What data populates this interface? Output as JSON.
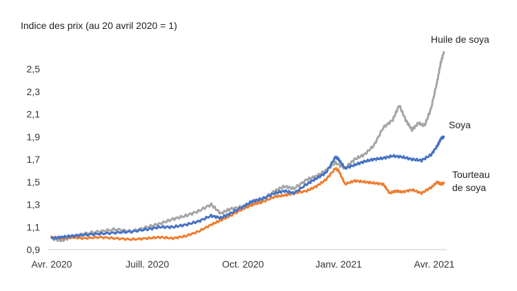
{
  "chart_data": {
    "type": "line",
    "title": "",
    "ylabel": "Indice des prix (au 20 avril 2020 = 1)",
    "xlabel": "",
    "ylim": [
      0.9,
      2.6
    ],
    "yticks": [
      "0,9",
      "1,1",
      "1,3",
      "1,5",
      "1,7",
      "1,9",
      "2,1",
      "2,3",
      "2,5"
    ],
    "ytick_values": [
      0.9,
      1.1,
      1.3,
      1.5,
      1.7,
      1.9,
      2.1,
      2.3,
      2.5
    ],
    "xlim": [
      0,
      12.3
    ],
    "xticks": [
      "Avr. 2020",
      "Juill. 2020",
      "Oct. 2020",
      "Janv. 2021",
      "Avr. 2021"
    ],
    "xtick_values": [
      0,
      3,
      6,
      9,
      12
    ],
    "x_unit": "months since 20 April 2020",
    "series": [
      {
        "name": "Huile de soya",
        "label_lines": [
          "Huile de soya"
        ],
        "color": "#a5a5a5",
        "x": [
          0,
          0.3,
          0.6,
          1.0,
          1.5,
          2.0,
          2.5,
          3.0,
          3.4,
          3.8,
          4.2,
          4.6,
          5.0,
          5.3,
          5.6,
          6.0,
          6.3,
          6.6,
          7.0,
          7.3,
          7.6,
          8.0,
          8.3,
          8.6,
          8.9,
          9.2,
          9.5,
          9.8,
          10.1,
          10.4,
          10.7,
          10.9,
          11.1,
          11.3,
          11.5,
          11.7,
          11.9,
          12.1,
          12.2,
          12.3
        ],
        "values": [
          1.0,
          0.98,
          1.01,
          1.04,
          1.06,
          1.08,
          1.06,
          1.1,
          1.13,
          1.17,
          1.2,
          1.24,
          1.3,
          1.22,
          1.26,
          1.28,
          1.3,
          1.34,
          1.42,
          1.46,
          1.44,
          1.52,
          1.55,
          1.6,
          1.67,
          1.62,
          1.7,
          1.74,
          1.82,
          1.98,
          2.05,
          2.18,
          2.05,
          1.96,
          2.02,
          2.0,
          2.15,
          2.4,
          2.55,
          2.65
        ]
      },
      {
        "name": "Soya",
        "label_lines": [
          "Soya"
        ],
        "color": "#4472c4",
        "x": [
          0,
          0.3,
          0.6,
          1.0,
          1.5,
          2.0,
          2.5,
          3.0,
          3.4,
          3.8,
          4.2,
          4.6,
          5.0,
          5.3,
          5.6,
          6.0,
          6.3,
          6.6,
          7.0,
          7.3,
          7.6,
          8.0,
          8.3,
          8.6,
          8.9,
          9.0,
          9.2,
          9.5,
          9.8,
          10.1,
          10.4,
          10.7,
          11.0,
          11.3,
          11.6,
          11.9,
          12.1,
          12.2,
          12.3
        ],
        "values": [
          1.0,
          1.01,
          1.02,
          1.03,
          1.04,
          1.05,
          1.06,
          1.08,
          1.1,
          1.1,
          1.12,
          1.15,
          1.2,
          1.18,
          1.22,
          1.28,
          1.33,
          1.35,
          1.4,
          1.42,
          1.4,
          1.48,
          1.53,
          1.58,
          1.72,
          1.7,
          1.62,
          1.65,
          1.68,
          1.7,
          1.71,
          1.73,
          1.72,
          1.7,
          1.69,
          1.74,
          1.82,
          1.88,
          1.9
        ]
      },
      {
        "name": "Tourteau de soya",
        "label_lines": [
          "Tourteau",
          "de soya"
        ],
        "color": "#ed7d31",
        "x": [
          0,
          0.3,
          0.6,
          1.0,
          1.5,
          2.0,
          2.5,
          3.0,
          3.4,
          3.8,
          4.2,
          4.6,
          5.0,
          5.3,
          5.6,
          6.0,
          6.3,
          6.6,
          7.0,
          7.3,
          7.6,
          8.0,
          8.3,
          8.6,
          8.9,
          9.0,
          9.2,
          9.5,
          9.8,
          10.1,
          10.4,
          10.6,
          10.8,
          11.0,
          11.3,
          11.6,
          11.9,
          12.1,
          12.2,
          12.3
        ],
        "values": [
          1.01,
          1.0,
          1.01,
          1.0,
          1.01,
          1.0,
          0.99,
          1.0,
          1.01,
          1.0,
          1.02,
          1.06,
          1.12,
          1.16,
          1.2,
          1.26,
          1.3,
          1.32,
          1.37,
          1.38,
          1.4,
          1.42,
          1.46,
          1.52,
          1.62,
          1.6,
          1.48,
          1.51,
          1.5,
          1.49,
          1.48,
          1.4,
          1.42,
          1.41,
          1.43,
          1.4,
          1.45,
          1.5,
          1.48,
          1.49
        ]
      }
    ]
  }
}
